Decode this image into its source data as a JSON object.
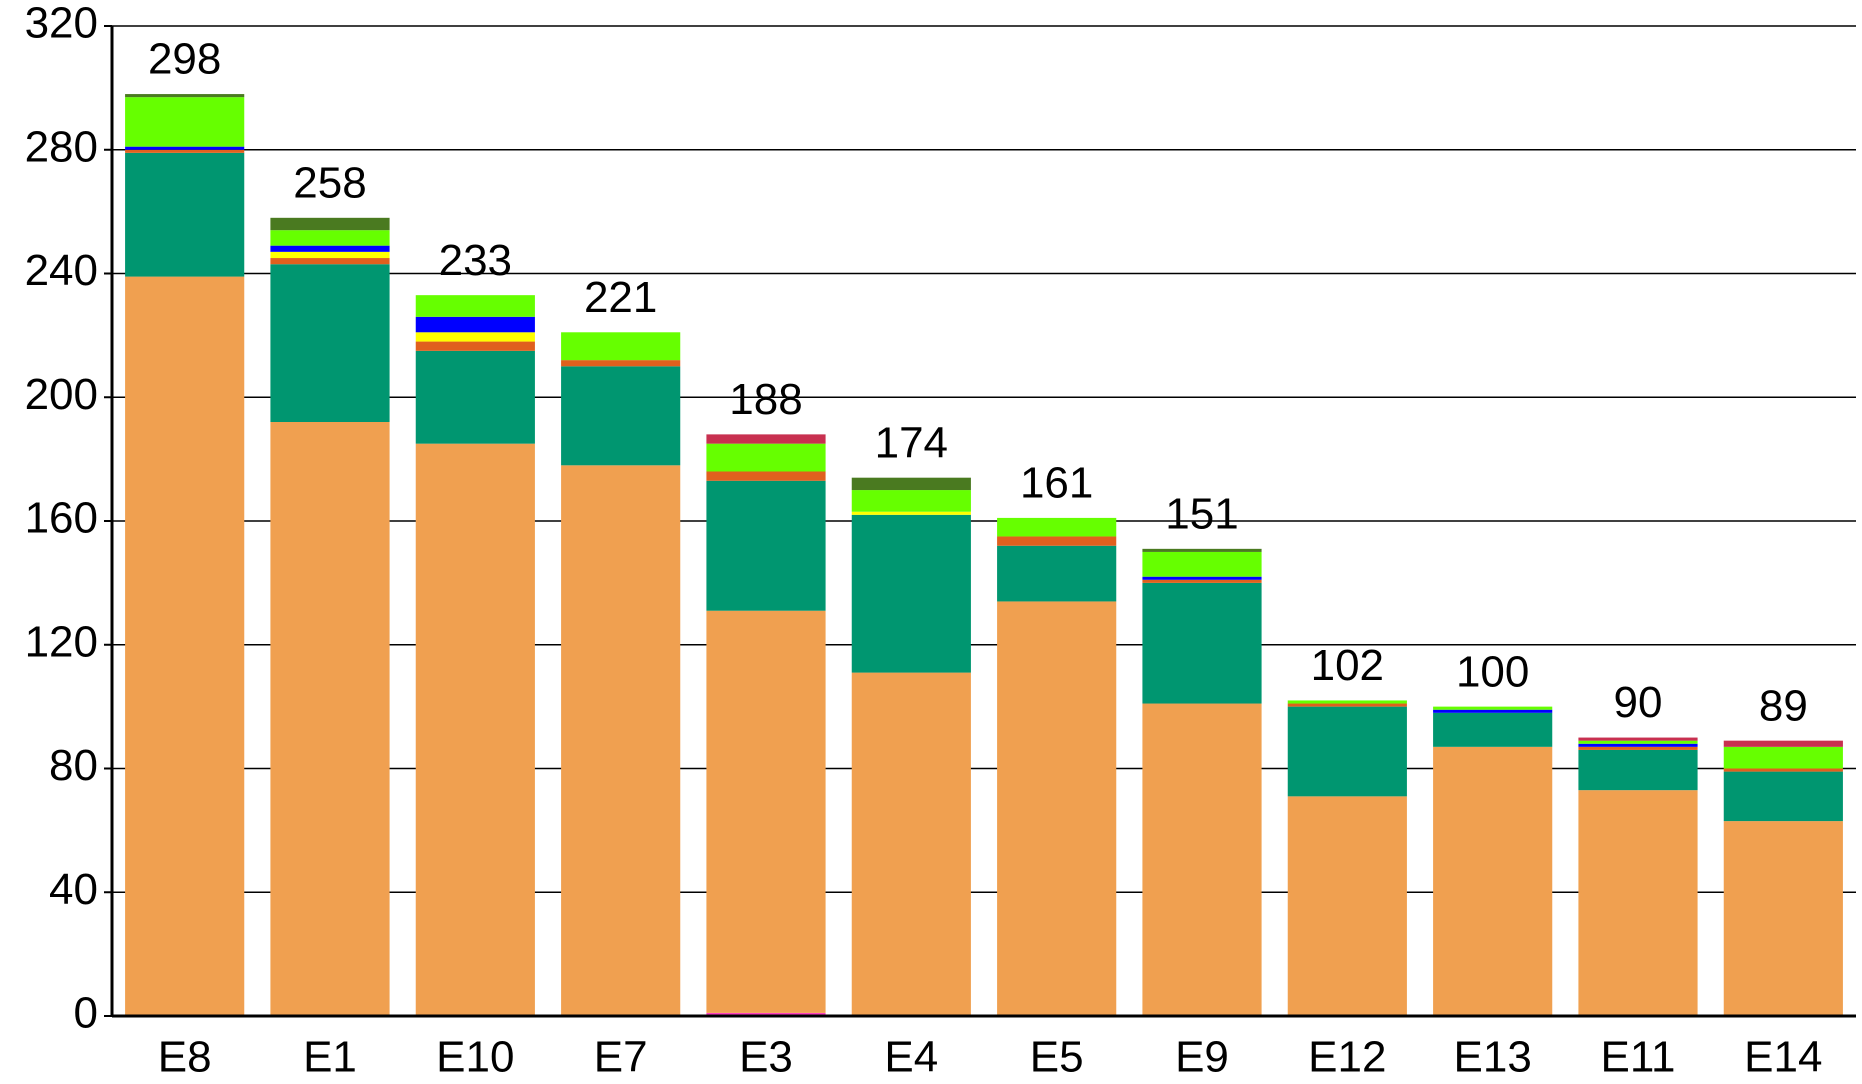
{
  "chart_data": {
    "type": "stacked-bar",
    "categories": [
      "E8",
      "E1",
      "E10",
      "E7",
      "E3",
      "E4",
      "E5",
      "E9",
      "E12",
      "E13",
      "E11",
      "E14"
    ],
    "series": [
      {
        "color": "#ff40c0",
        "values": [
          0,
          0,
          0,
          0,
          1,
          0,
          0,
          0,
          0,
          0,
          0,
          0
        ]
      },
      {
        "color": "#f0a050",
        "values": [
          239,
          192,
          185,
          178,
          130,
          111,
          134,
          101,
          71,
          87,
          73,
          63
        ]
      },
      {
        "color": "#009670",
        "values": [
          40,
          51,
          30,
          32,
          42,
          51,
          18,
          39,
          29,
          11,
          13,
          16
        ]
      },
      {
        "color": "#e0601e",
        "values": [
          1,
          2,
          3,
          2,
          3,
          0,
          3,
          1,
          1,
          0,
          1,
          1
        ]
      },
      {
        "color": "#ffff00",
        "values": [
          0,
          2,
          3,
          0,
          0,
          1,
          0,
          0,
          0,
          0,
          0,
          0
        ]
      },
      {
        "color": "#0000ff",
        "values": [
          1,
          2,
          5,
          0,
          0,
          0,
          0,
          1,
          0,
          1,
          1,
          0
        ]
      },
      {
        "color": "#66ff00",
        "values": [
          16,
          5,
          7,
          9,
          9,
          7,
          6,
          8,
          1,
          1,
          1,
          7
        ]
      },
      {
        "color": "#4a7a20",
        "values": [
          1,
          4,
          0,
          0,
          0,
          4,
          0,
          1,
          0,
          0,
          0,
          0
        ]
      },
      {
        "color": "#c83050",
        "values": [
          0,
          0,
          0,
          0,
          3,
          0,
          0,
          0,
          0,
          0,
          1,
          2
        ]
      }
    ],
    "totals": [
      298,
      258,
      233,
      221,
      188,
      174,
      161,
      151,
      102,
      100,
      90,
      89
    ],
    "ylim": [
      0,
      320
    ],
    "yticks": [
      0,
      40,
      80,
      120,
      160,
      200,
      240,
      280,
      320
    ],
    "grid": true
  }
}
